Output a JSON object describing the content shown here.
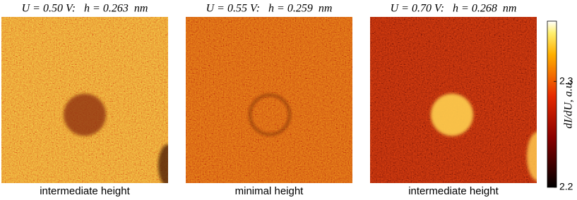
{
  "panels": [
    {
      "title": "U = 0.50 V:   h = 0.263  nm",
      "caption": "intermediate height"
    },
    {
      "title": "U = 0.55 V:   h = 0.259  nm",
      "caption": "minimal height"
    },
    {
      "title": "U = 0.70 V:   h = 0.268  nm",
      "caption": "intermediate height"
    }
  ],
  "colorbar": {
    "label": "dI/dU, a.u.",
    "lim": [
      2.2,
      2.357
    ],
    "ticks": [
      2.2,
      2.3
    ]
  }
}
